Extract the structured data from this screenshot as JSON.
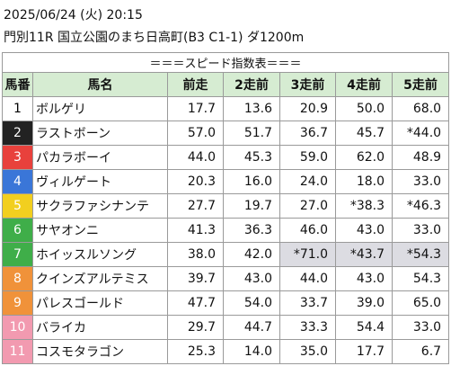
{
  "header": {
    "datetime": "2025/06/24 (火) 20:15",
    "race": "門別11R 国立公園のまち日高町(B3 C1-1) ダ1200m"
  },
  "table": {
    "title": "＝＝＝スピード指数表＝＝＝",
    "columns": [
      "馬番",
      "馬名",
      "前走",
      "2走前",
      "3走前",
      "4走前",
      "5走前"
    ],
    "rows": [
      {
        "number": "1",
        "name": "ボルゲリ",
        "values": [
          "17.7",
          "13.6",
          "20.9",
          "50.0",
          "68.0"
        ],
        "color": "#ffffff",
        "text_color": "#000000",
        "shaded": [
          false,
          false,
          false,
          false,
          false
        ]
      },
      {
        "number": "2",
        "name": "ラストボーン",
        "values": [
          "57.0",
          "51.7",
          "36.7",
          "45.7",
          "*44.0"
        ],
        "color": "#222222",
        "text_color": "#ffffff",
        "shaded": [
          false,
          false,
          false,
          false,
          false
        ]
      },
      {
        "number": "3",
        "name": "パカラボーイ",
        "values": [
          "44.0",
          "45.3",
          "59.0",
          "62.0",
          "48.9"
        ],
        "color": "#e8413c",
        "text_color": "#ffffff",
        "shaded": [
          false,
          false,
          false,
          false,
          false
        ]
      },
      {
        "number": "4",
        "name": "ヴィルゲート",
        "values": [
          "20.3",
          "16.0",
          "24.0",
          "18.0",
          "33.0"
        ],
        "color": "#3a76d8",
        "text_color": "#ffffff",
        "shaded": [
          false,
          false,
          false,
          false,
          false
        ]
      },
      {
        "number": "5",
        "name": "サクラファシナンテ",
        "values": [
          "27.7",
          "19.7",
          "27.0",
          "*38.3",
          "*46.3"
        ],
        "color": "#f2cf1f",
        "text_color": "#ffffff",
        "shaded": [
          false,
          false,
          false,
          false,
          false
        ]
      },
      {
        "number": "6",
        "name": "サヤオンニ",
        "values": [
          "41.3",
          "36.3",
          "46.0",
          "43.0",
          "33.0"
        ],
        "color": "#3fae49",
        "text_color": "#ffffff",
        "shaded": [
          false,
          false,
          false,
          false,
          false
        ]
      },
      {
        "number": "7",
        "name": "ホイッスルソング",
        "values": [
          "38.0",
          "42.0",
          "*71.0",
          "*43.7",
          "*54.3"
        ],
        "color": "#3fae49",
        "text_color": "#ffffff",
        "shaded": [
          false,
          false,
          true,
          true,
          true
        ]
      },
      {
        "number": "8",
        "name": "クインズアルテミス",
        "values": [
          "39.7",
          "43.0",
          "44.0",
          "43.0",
          "54.3"
        ],
        "color": "#f0923a",
        "text_color": "#ffffff",
        "shaded": [
          false,
          false,
          false,
          false,
          false
        ]
      },
      {
        "number": "9",
        "name": "パレスゴールド",
        "values": [
          "47.7",
          "54.0",
          "33.7",
          "39.0",
          "65.0"
        ],
        "color": "#f0923a",
        "text_color": "#ffffff",
        "shaded": [
          false,
          false,
          false,
          false,
          false
        ]
      },
      {
        "number": "10",
        "name": "バライカ",
        "values": [
          "29.7",
          "44.7",
          "33.3",
          "54.4",
          "33.0"
        ],
        "color": "#f29ab0",
        "text_color": "#ffffff",
        "shaded": [
          false,
          false,
          false,
          false,
          false
        ]
      },
      {
        "number": "11",
        "name": "コスモタラゴン",
        "values": [
          "25.3",
          "14.0",
          "35.0",
          "17.7",
          "6.7"
        ],
        "color": "#f29ab0",
        "text_color": "#ffffff",
        "shaded": [
          false,
          false,
          false,
          false,
          false
        ]
      }
    ]
  }
}
